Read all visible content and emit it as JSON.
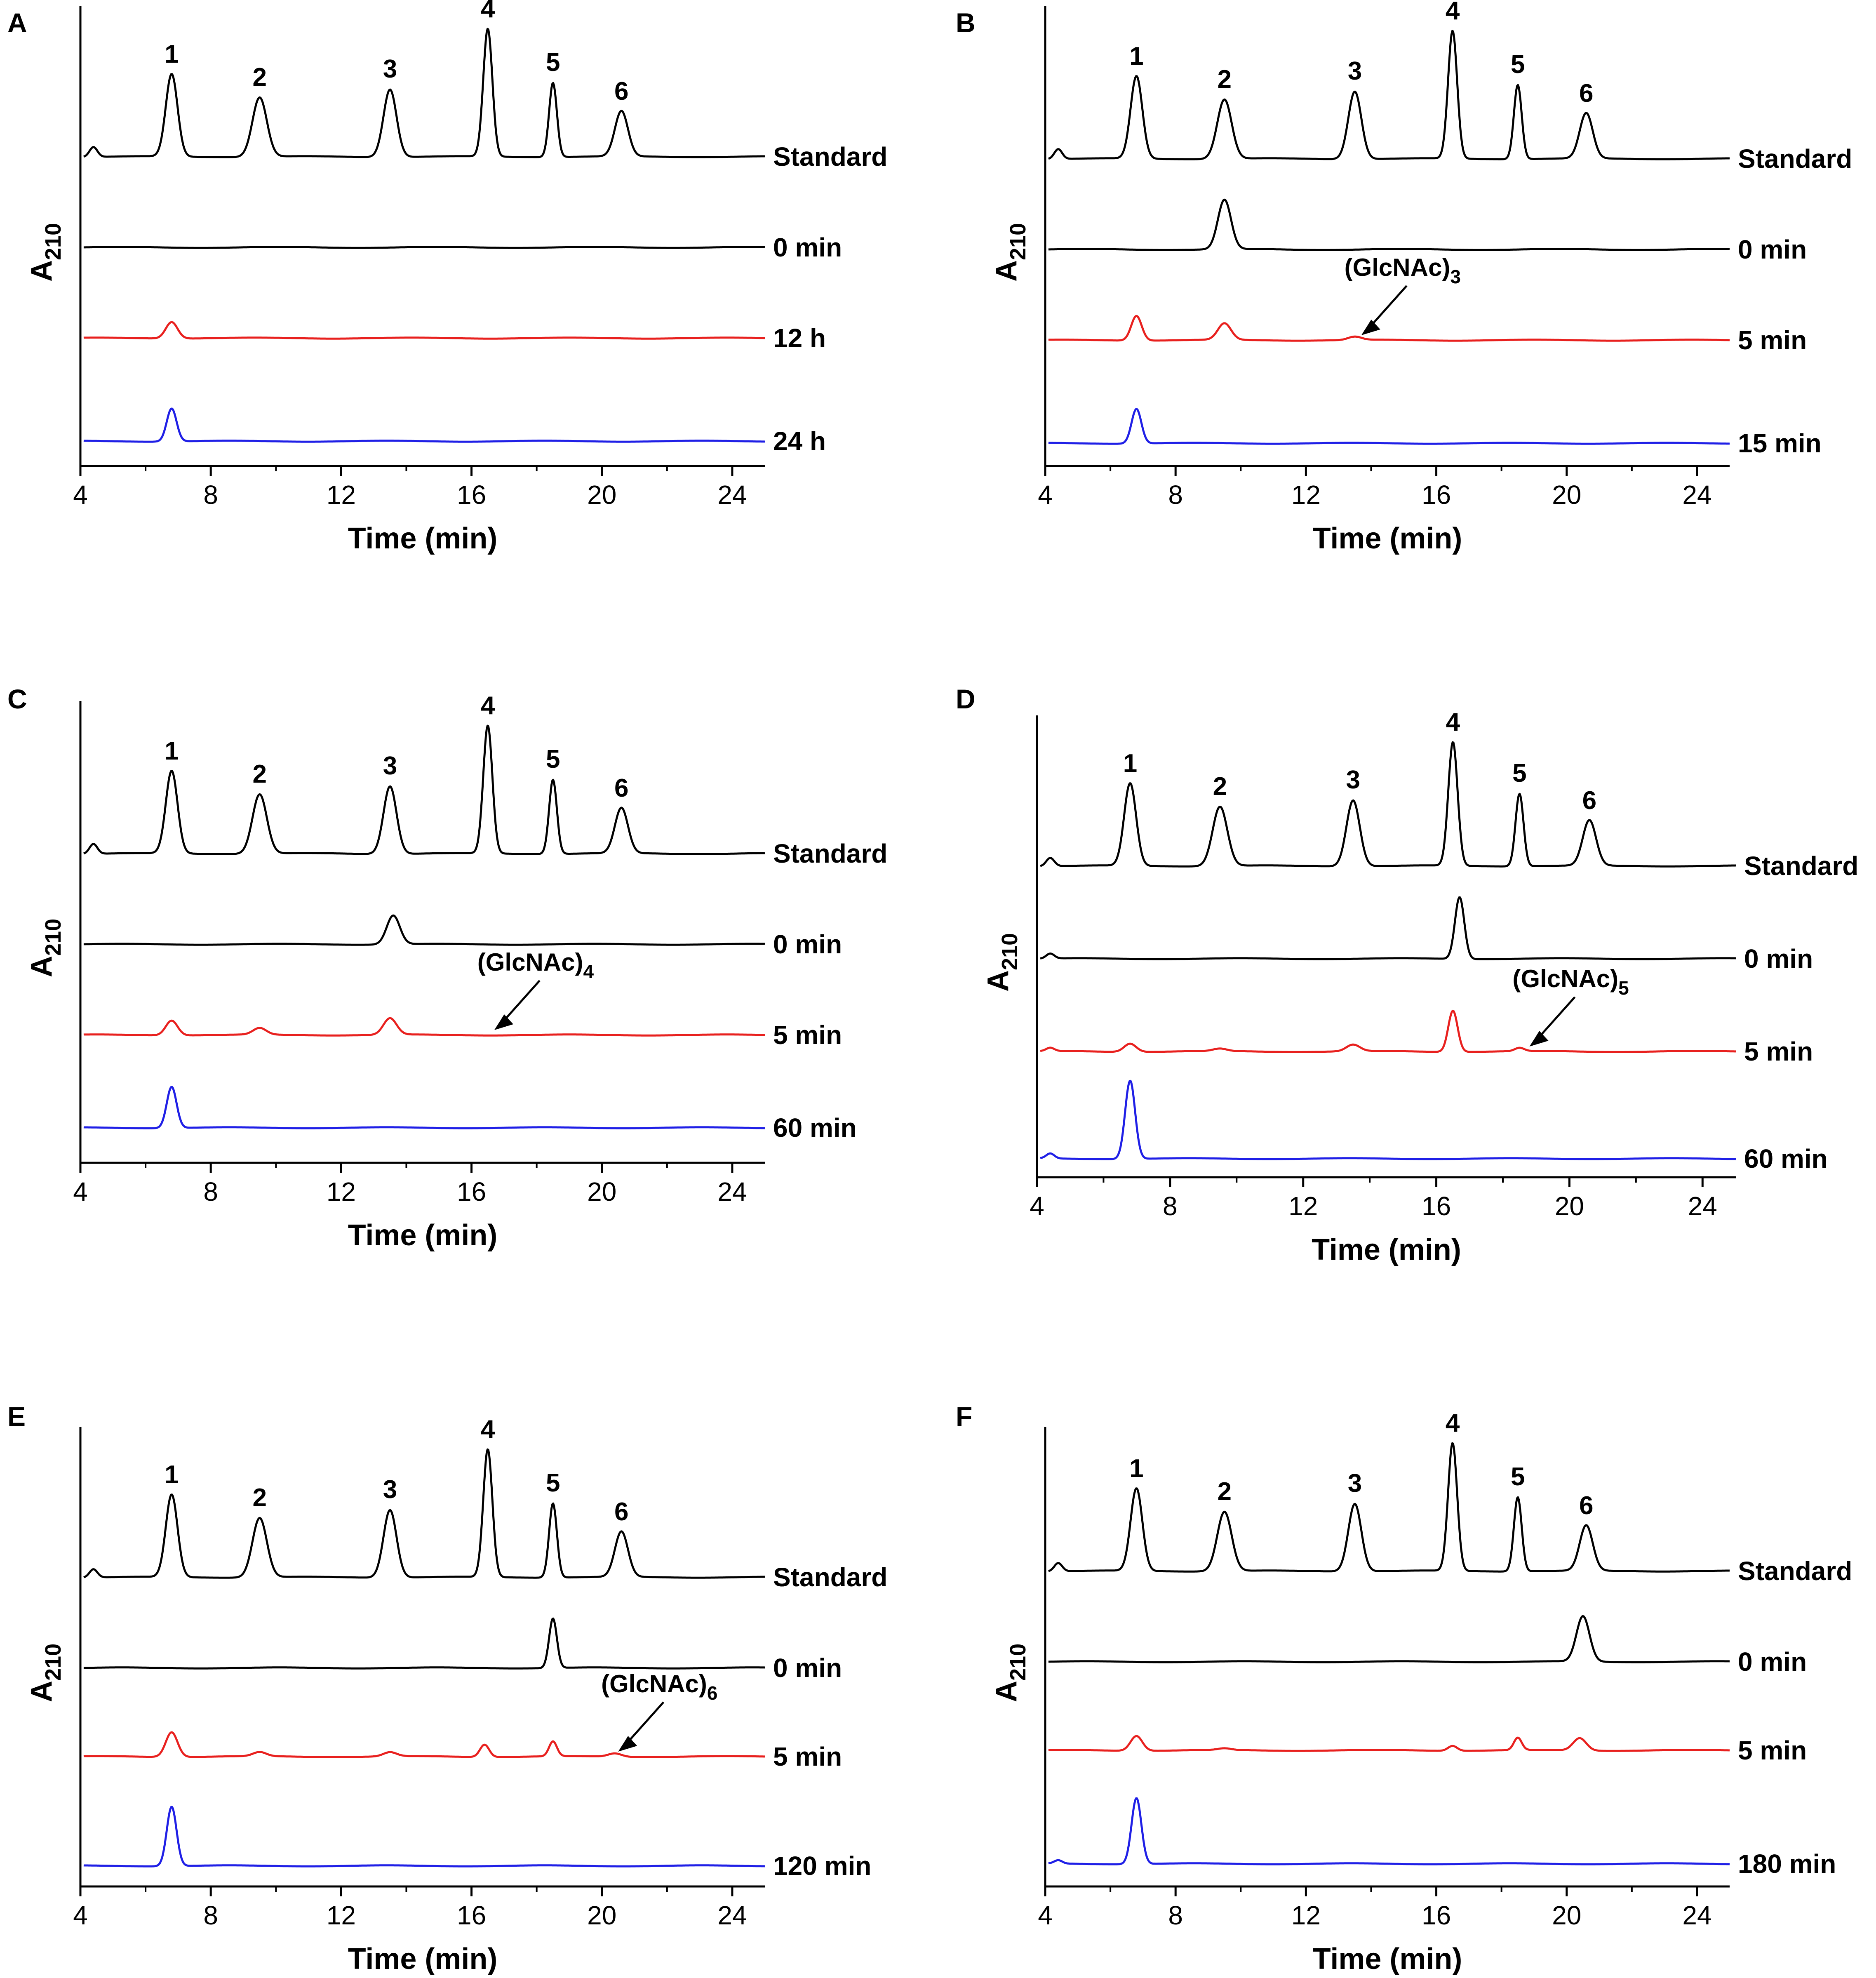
{
  "chart_data": [
    {
      "type": "line",
      "panel": "A",
      "xlabel": "Time (min)",
      "ylabel_main": "A",
      "ylabel_sub": "210",
      "xlim": [
        4,
        25
      ],
      "xticks": [
        4,
        8,
        12,
        16,
        20,
        24
      ],
      "xtick_labels": [
        "4",
        "8",
        "12",
        "16",
        "20",
        "24"
      ],
      "peak_labels": [
        {
          "label": "1",
          "x": 6.8
        },
        {
          "label": "2",
          "x": 9.5
        },
        {
          "label": "3",
          "x": 13.5
        },
        {
          "label": "4",
          "x": 16.5
        },
        {
          "label": "5",
          "x": 18.5
        },
        {
          "label": "6",
          "x": 20.6
        }
      ],
      "series": [
        {
          "name": "Standard",
          "color": "#000000",
          "peaks": [
            [
              4.4,
              0.12,
              0.12
            ],
            [
              6.8,
              1.0,
              0.18
            ],
            [
              9.5,
              0.72,
              0.22
            ],
            [
              13.5,
              0.82,
              0.2
            ],
            [
              16.5,
              1.55,
              0.14
            ],
            [
              18.5,
              0.9,
              0.12
            ],
            [
              20.6,
              0.55,
              0.2
            ]
          ]
        },
        {
          "name": "0 min",
          "color": "#000000",
          "peaks": []
        },
        {
          "name": "12 h",
          "color": "#e8201e",
          "peaks": [
            [
              6.8,
              0.2,
              0.18
            ]
          ]
        },
        {
          "name": "24 h",
          "color": "#1f1fe6",
          "peaks": [
            [
              6.8,
              0.4,
              0.15
            ]
          ]
        }
      ],
      "annotation": null
    },
    {
      "type": "line",
      "panel": "B",
      "xlabel": "Time (min)",
      "ylabel_main": "A",
      "ylabel_sub": "210",
      "xlim": [
        4,
        25
      ],
      "xticks": [
        4,
        8,
        12,
        16,
        20,
        24
      ],
      "xtick_labels": [
        "4",
        "8",
        "12",
        "16",
        "20",
        "24"
      ],
      "peak_labels": [
        {
          "label": "1",
          "x": 6.8
        },
        {
          "label": "2",
          "x": 9.5
        },
        {
          "label": "3",
          "x": 13.5
        },
        {
          "label": "4",
          "x": 16.5
        },
        {
          "label": "5",
          "x": 18.5
        },
        {
          "label": "6",
          "x": 20.6
        }
      ],
      "series": [
        {
          "name": "Standard",
          "color": "#000000",
          "peaks": [
            [
              4.4,
              0.12,
              0.12
            ],
            [
              6.8,
              1.0,
              0.18
            ],
            [
              9.5,
              0.72,
              0.22
            ],
            [
              13.5,
              0.82,
              0.2
            ],
            [
              16.5,
              1.55,
              0.14
            ],
            [
              18.5,
              0.9,
              0.12
            ],
            [
              20.6,
              0.55,
              0.2
            ]
          ]
        },
        {
          "name": "0 min",
          "color": "#000000",
          "peaks": [
            [
              9.5,
              0.6,
              0.2
            ]
          ]
        },
        {
          "name": "5 min",
          "color": "#e8201e",
          "peaks": [
            [
              6.8,
              0.3,
              0.16
            ],
            [
              9.5,
              0.2,
              0.2
            ],
            [
              13.5,
              0.04,
              0.2
            ]
          ]
        },
        {
          "name": "15 min",
          "color": "#1f1fe6",
          "peaks": [
            [
              6.8,
              0.42,
              0.15
            ]
          ]
        }
      ],
      "annotation": {
        "text": "(GlcNAc)",
        "sub": "3",
        "series": "5 min",
        "x": 13.7
      }
    },
    {
      "type": "line",
      "panel": "C",
      "xlabel": "Time (min)",
      "ylabel_main": "A",
      "ylabel_sub": "210",
      "xlim": [
        4,
        25
      ],
      "xticks": [
        4,
        8,
        12,
        16,
        20,
        24
      ],
      "xtick_labels": [
        "4",
        "8",
        "12",
        "16",
        "20",
        "24"
      ],
      "peak_labels": [
        {
          "label": "1",
          "x": 6.8
        },
        {
          "label": "2",
          "x": 9.5
        },
        {
          "label": "3",
          "x": 13.5
        },
        {
          "label": "4",
          "x": 16.5
        },
        {
          "label": "5",
          "x": 18.5
        },
        {
          "label": "6",
          "x": 20.6
        }
      ],
      "series": [
        {
          "name": "Standard",
          "color": "#000000",
          "peaks": [
            [
              4.4,
              0.12,
              0.12
            ],
            [
              6.8,
              1.0,
              0.18
            ],
            [
              9.5,
              0.72,
              0.22
            ],
            [
              13.5,
              0.82,
              0.2
            ],
            [
              16.5,
              1.55,
              0.14
            ],
            [
              18.5,
              0.9,
              0.12
            ],
            [
              20.6,
              0.55,
              0.2
            ]
          ]
        },
        {
          "name": "0 min",
          "color": "#000000",
          "peaks": [
            [
              13.6,
              0.35,
              0.2
            ]
          ]
        },
        {
          "name": "5 min",
          "color": "#e8201e",
          "peaks": [
            [
              6.8,
              0.18,
              0.18
            ],
            [
              9.5,
              0.08,
              0.2
            ],
            [
              13.5,
              0.2,
              0.2
            ]
          ]
        },
        {
          "name": "60 min",
          "color": "#1f1fe6",
          "peaks": [
            [
              6.8,
              0.5,
              0.15
            ]
          ]
        }
      ],
      "annotation": {
        "text": "(GlcNAc)",
        "sub": "4",
        "series": "5 min",
        "x": 16.7
      }
    },
    {
      "type": "line",
      "panel": "D",
      "xlabel": "Time (min)",
      "ylabel_main": "A",
      "ylabel_sub": "210",
      "xlim": [
        4,
        25
      ],
      "xticks": [
        4,
        8,
        12,
        16,
        20,
        24
      ],
      "xtick_labels": [
        "4",
        "8",
        "12",
        "16",
        "20",
        "24"
      ],
      "peak_labels": [
        {
          "label": "1",
          "x": 6.8
        },
        {
          "label": "2",
          "x": 9.5
        },
        {
          "label": "3",
          "x": 13.5
        },
        {
          "label": "4",
          "x": 16.5
        },
        {
          "label": "5",
          "x": 18.5
        },
        {
          "label": "6",
          "x": 20.6
        }
      ],
      "series": [
        {
          "name": "Standard",
          "color": "#000000",
          "peaks": [
            [
              4.4,
              0.1,
              0.12
            ],
            [
              6.8,
              1.0,
              0.18
            ],
            [
              9.5,
              0.72,
              0.22
            ],
            [
              13.5,
              0.8,
              0.2
            ],
            [
              16.5,
              1.5,
              0.14
            ],
            [
              18.5,
              0.88,
              0.12
            ],
            [
              20.6,
              0.55,
              0.2
            ]
          ]
        },
        {
          "name": "0 min",
          "color": "#000000",
          "peaks": [
            [
              4.4,
              0.06,
              0.12
            ],
            [
              16.7,
              0.75,
              0.14
            ]
          ]
        },
        {
          "name": "5 min",
          "color": "#e8201e",
          "peaks": [
            [
              4.4,
              0.04,
              0.12
            ],
            [
              6.8,
              0.1,
              0.18
            ],
            [
              9.5,
              0.03,
              0.2
            ],
            [
              13.5,
              0.08,
              0.2
            ],
            [
              16.5,
              0.5,
              0.14
            ],
            [
              18.5,
              0.04,
              0.14
            ]
          ]
        },
        {
          "name": "60 min",
          "color": "#1f1fe6",
          "peaks": [
            [
              4.4,
              0.06,
              0.12
            ],
            [
              6.8,
              0.95,
              0.15
            ]
          ]
        }
      ],
      "annotation": {
        "text": "(GlcNAc)",
        "sub": "5",
        "series": "5 min",
        "x": 18.8
      }
    },
    {
      "type": "line",
      "panel": "E",
      "xlabel": "Time (min)",
      "ylabel_main": "A",
      "ylabel_sub": "210",
      "xlim": [
        4,
        25
      ],
      "xticks": [
        4,
        8,
        12,
        16,
        20,
        24
      ],
      "xtick_labels": [
        "4",
        "8",
        "12",
        "16",
        "20",
        "24"
      ],
      "peak_labels": [
        {
          "label": "1",
          "x": 6.8
        },
        {
          "label": "2",
          "x": 9.5
        },
        {
          "label": "3",
          "x": 13.5
        },
        {
          "label": "4",
          "x": 16.5
        },
        {
          "label": "5",
          "x": 18.5
        },
        {
          "label": "6",
          "x": 20.6
        }
      ],
      "series": [
        {
          "name": "Standard",
          "color": "#000000",
          "peaks": [
            [
              4.4,
              0.1,
              0.12
            ],
            [
              6.8,
              1.0,
              0.18
            ],
            [
              9.5,
              0.72,
              0.22
            ],
            [
              13.5,
              0.82,
              0.2
            ],
            [
              16.5,
              1.55,
              0.14
            ],
            [
              18.5,
              0.9,
              0.12
            ],
            [
              20.6,
              0.55,
              0.2
            ]
          ]
        },
        {
          "name": "0 min",
          "color": "#000000",
          "peaks": [
            [
              18.5,
              0.6,
              0.12
            ]
          ]
        },
        {
          "name": "5 min",
          "color": "#e8201e",
          "peaks": [
            [
              6.8,
              0.3,
              0.18
            ],
            [
              9.5,
              0.05,
              0.2
            ],
            [
              13.5,
              0.05,
              0.2
            ],
            [
              16.4,
              0.15,
              0.14
            ],
            [
              18.5,
              0.18,
              0.12
            ],
            [
              20.4,
              0.04,
              0.2
            ]
          ]
        },
        {
          "name": "120 min",
          "color": "#1f1fe6",
          "peaks": [
            [
              6.8,
              0.72,
              0.15
            ]
          ]
        }
      ],
      "annotation": {
        "text": "(GlcNAc)",
        "sub": "6",
        "series": "5 min",
        "x": 20.5
      }
    },
    {
      "type": "line",
      "panel": "F",
      "xlabel": "Time (min)",
      "ylabel_main": "A",
      "ylabel_sub": "210",
      "xlim": [
        4,
        25
      ],
      "xticks": [
        4,
        8,
        12,
        16,
        20,
        24
      ],
      "xtick_labels": [
        "4",
        "8",
        "12",
        "16",
        "20",
        "24"
      ],
      "peak_labels": [
        {
          "label": "1",
          "x": 6.8
        },
        {
          "label": "2",
          "x": 9.5
        },
        {
          "label": "3",
          "x": 13.5
        },
        {
          "label": "4",
          "x": 16.5
        },
        {
          "label": "5",
          "x": 18.5
        },
        {
          "label": "6",
          "x": 20.6
        }
      ],
      "series": [
        {
          "name": "Standard",
          "color": "#000000",
          "peaks": [
            [
              4.4,
              0.1,
              0.12
            ],
            [
              6.8,
              1.0,
              0.18
            ],
            [
              9.5,
              0.72,
              0.22
            ],
            [
              13.5,
              0.82,
              0.2
            ],
            [
              16.5,
              1.55,
              0.14
            ],
            [
              18.5,
              0.9,
              0.12
            ],
            [
              20.6,
              0.55,
              0.2
            ]
          ]
        },
        {
          "name": "0 min",
          "color": "#000000",
          "peaks": [
            [
              20.5,
              0.55,
              0.2
            ]
          ]
        },
        {
          "name": "5 min",
          "color": "#e8201e",
          "peaks": [
            [
              6.8,
              0.18,
              0.18
            ],
            [
              9.5,
              0.02,
              0.2
            ],
            [
              16.5,
              0.06,
              0.14
            ],
            [
              18.5,
              0.15,
              0.12
            ],
            [
              20.4,
              0.15,
              0.2
            ]
          ]
        },
        {
          "name": "180 min",
          "color": "#1f1fe6",
          "peaks": [
            [
              4.4,
              0.04,
              0.12
            ],
            [
              6.8,
              0.8,
              0.15
            ]
          ]
        }
      ],
      "annotation": null
    }
  ]
}
